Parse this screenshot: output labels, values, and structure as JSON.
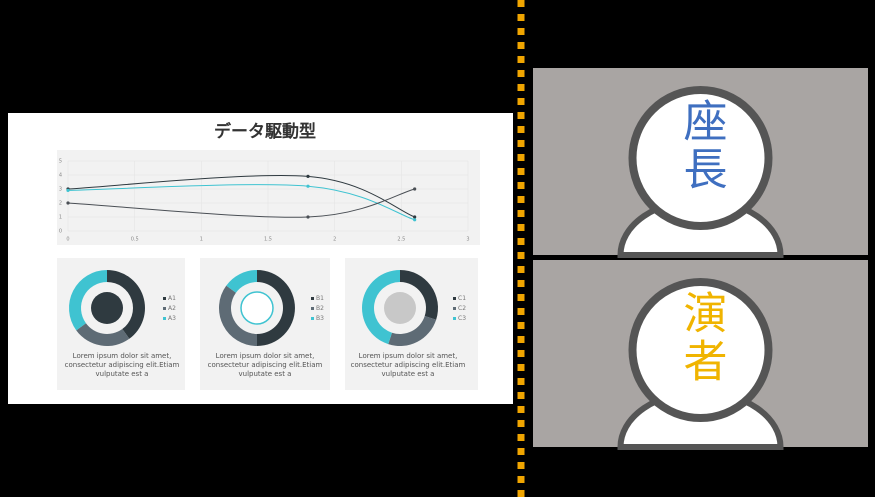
{
  "slide": {
    "title": "データ駆動型"
  },
  "chart_data": [
    {
      "type": "line",
      "xlim": [
        0,
        3
      ],
      "xticks": [
        0,
        0.5,
        1,
        1.5,
        2,
        2.5,
        3
      ],
      "ylim": [
        0,
        5
      ],
      "yticks": [
        0,
        1,
        2,
        3,
        4,
        5
      ],
      "grid": true,
      "x": [
        0,
        1.8,
        2.6
      ],
      "series": [
        {
          "color": "#2f3a40",
          "values": [
            3,
            3.9,
            1
          ]
        },
        {
          "color": "#3fc3d1",
          "values": [
            2.9,
            3.2,
            0.8
          ]
        },
        {
          "color": "#4a4f55",
          "values": [
            2,
            1,
            3
          ]
        }
      ]
    },
    {
      "type": "pie",
      "categories": [
        "A1",
        "A2",
        "A3"
      ],
      "values": [
        40,
        25,
        35
      ],
      "colors": [
        "#2f3a40",
        "#5e6b75",
        "#3fc3d1"
      ],
      "caption": "Lorem ipsum dolor sit amet, consectetur adipiscing elit.Etiam vulputate est a"
    },
    {
      "type": "pie",
      "categories": [
        "B1",
        "B2",
        "B3"
      ],
      "values": [
        50,
        35,
        15
      ],
      "colors": [
        "#2f3a40",
        "#5e6b75",
        "#3fc3d1"
      ],
      "caption": "Lorem ipsum dolor sit amet, consectetur adipiscing elit.Etiam vulputate est a"
    },
    {
      "type": "pie",
      "categories": [
        "C1",
        "C2",
        "C3"
      ],
      "values": [
        30,
        25,
        45
      ],
      "colors": [
        "#2f3a40",
        "#5e6b75",
        "#3fc3d1"
      ],
      "caption": "Lorem ipsum dolor sit amet, consectetur adipiscing elit.Etiam vulputate est a"
    }
  ],
  "participants": [
    {
      "label": "座長",
      "color": "#3f6fc0"
    },
    {
      "label": "演者",
      "color": "#f0b400"
    }
  ]
}
